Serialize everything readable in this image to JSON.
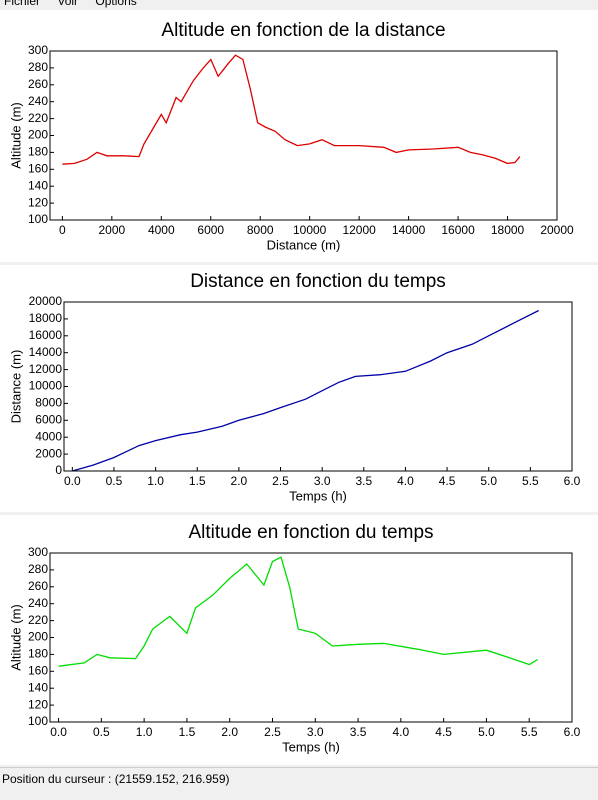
{
  "menu": [
    "Fichier",
    "Voir",
    "Options"
  ],
  "status_bar": "Position du curseur : (21559.152, 216.959)",
  "chart_data": [
    {
      "type": "line",
      "title": "Altitude en fonction de la distance",
      "x_label": "Distance (m)",
      "y_label": "Altitude (m)",
      "x": [
        0,
        500,
        1000,
        1400,
        1800,
        2500,
        3100,
        3300,
        3700,
        4000,
        4200,
        4400,
        4600,
        4800,
        5000,
        5300,
        5700,
        6000,
        6300,
        6700,
        7000,
        7300,
        7600,
        7900,
        8200,
        8600,
        9000,
        9500,
        10000,
        10500,
        11000,
        12000,
        13000,
        13500,
        14000,
        15000,
        16000,
        16500,
        17000,
        17500,
        18000,
        18300,
        18500
      ],
      "series": [
        {
          "name": "Altitude",
          "color": "#dd0000",
          "values": [
            166,
            167,
            172,
            180,
            176,
            176,
            175,
            190,
            210,
            225,
            215,
            230,
            245,
            240,
            250,
            265,
            280,
            290,
            270,
            285,
            295,
            290,
            255,
            215,
            210,
            205,
            195,
            188,
            190,
            195,
            188,
            188,
            186,
            180,
            183,
            184,
            186,
            180,
            177,
            173,
            167,
            168,
            175
          ]
        }
      ],
      "xlim": [
        -500,
        20000
      ],
      "ylim": [
        100,
        300
      ],
      "xticks": [
        0,
        2000,
        4000,
        6000,
        8000,
        10000,
        12000,
        14000,
        16000,
        18000,
        20000
      ],
      "yticks": [
        100,
        120,
        140,
        160,
        180,
        200,
        220,
        240,
        260,
        280,
        300
      ]
    },
    {
      "type": "line",
      "title": "Distance en fonction du temps",
      "x_label": "Temps (h)",
      "y_label": "Distance (m)",
      "x": [
        0,
        0.25,
        0.5,
        0.8,
        1.0,
        1.3,
        1.5,
        1.8,
        2.0,
        2.3,
        2.5,
        2.8,
        3.0,
        3.2,
        3.4,
        3.7,
        4.0,
        4.3,
        4.5,
        4.8,
        5.0,
        5.3,
        5.6
      ],
      "series": [
        {
          "name": "Distance",
          "color": "#0000a8",
          "values": [
            0,
            700,
            1600,
            3000,
            3600,
            4300,
            4600,
            5300,
            6000,
            6800,
            7500,
            8500,
            9500,
            10500,
            11200,
            11400,
            11800,
            13000,
            14000,
            15000,
            16000,
            17500,
            19000
          ]
        }
      ],
      "xlim": [
        -0.1,
        6.0
      ],
      "ylim": [
        0,
        20000
      ],
      "xticks": [
        {
          "value": 0,
          "label": "0.0"
        },
        0.5,
        {
          "value": 1,
          "label": "1.0"
        },
        1.5,
        {
          "value": 2,
          "label": "2.0"
        },
        2.5,
        {
          "value": 3,
          "label": "3.0"
        },
        3.5,
        {
          "value": 4,
          "label": "4.0"
        },
        4.5,
        {
          "value": 5,
          "label": "5.0"
        },
        5.5,
        {
          "value": 6,
          "label": "6.0"
        }
      ],
      "yticks": [
        0,
        2000,
        4000,
        6000,
        8000,
        10000,
        12000,
        14000,
        16000,
        18000,
        20000
      ]
    },
    {
      "type": "line",
      "title": "Altitude en fonction du temps",
      "x_label": "Temps (h)",
      "y_label": "Altitude (m)",
      "x": [
        0,
        0.3,
        0.45,
        0.6,
        0.9,
        1.0,
        1.1,
        1.3,
        1.5,
        1.6,
        1.8,
        2.0,
        2.2,
        2.4,
        2.5,
        2.6,
        2.7,
        2.8,
        3.0,
        3.2,
        3.5,
        3.8,
        4.2,
        4.5,
        5.0,
        5.3,
        5.5,
        5.6
      ],
      "series": [
        {
          "name": "Altitude",
          "color": "#00dd00",
          "values": [
            166,
            170,
            180,
            176,
            175,
            190,
            210,
            225,
            205,
            235,
            250,
            270,
            287,
            262,
            290,
            295,
            260,
            210,
            205,
            190,
            192,
            193,
            186,
            180,
            185,
            175,
            168,
            174
          ]
        }
      ],
      "xlim": [
        -0.1,
        6.0
      ],
      "ylim": [
        100,
        300
      ],
      "xticks": [
        {
          "value": 0,
          "label": "0.0"
        },
        0.5,
        {
          "value": 1,
          "label": "1.0"
        },
        1.5,
        {
          "value": 2,
          "label": "2.0"
        },
        2.5,
        {
          "value": 3,
          "label": "3.0"
        },
        3.5,
        {
          "value": 4,
          "label": "4.0"
        },
        4.5,
        {
          "value": 5,
          "label": "5.0"
        },
        5.5,
        {
          "value": 6,
          "label": "6.0"
        }
      ],
      "yticks": [
        100,
        120,
        140,
        160,
        180,
        200,
        220,
        240,
        260,
        280,
        300
      ]
    }
  ]
}
